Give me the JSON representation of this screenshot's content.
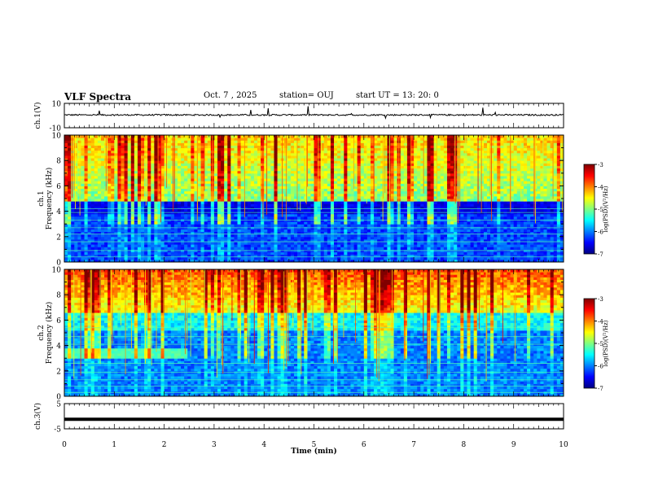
{
  "header": {
    "title": "VLF Spectra",
    "date": "Oct. 7 , 2025",
    "station": "station= OUJ",
    "start_ut": "start UT =  13: 20: 0"
  },
  "chart_data": {
    "type": "heatmap",
    "title": "VLF Spectra",
    "xlabel": "Time (min)",
    "xlim": [
      0,
      10
    ],
    "xticks": [
      "0",
      "1",
      "2",
      "3",
      "4",
      "5",
      "6",
      "7",
      "8",
      "9",
      "10"
    ],
    "panels": [
      {
        "id": "ch1-waveform",
        "ylabel": "ch.1(V)",
        "ylim": [
          -10,
          10
        ],
        "yticks": [
          "10",
          "-10"
        ],
        "kind": "waveform",
        "baseline": 0.5
      },
      {
        "id": "ch1-spectrogram",
        "ylabel": "ch.1\nFrequency (kHz)",
        "ylim": [
          0,
          10
        ],
        "yticks": [
          "0",
          "2",
          "4",
          "6",
          "8",
          "10"
        ],
        "kind": "spectrogram",
        "colorbar": {
          "label": "log(PSD)(V²/Hz)",
          "range": [
            -7,
            -3
          ],
          "ticks": [
            "-3",
            "-4",
            "-5",
            "-6",
            "-7"
          ]
        },
        "features": {
          "strong_band_above_khz": 4.8,
          "quiet_below_khz": 4.5,
          "narrowband_lines_khz": [
            0.4,
            0.9,
            1.6,
            2.2,
            2.7,
            3.3,
            3.9,
            4.2
          ]
        }
      },
      {
        "id": "ch2-spectrogram",
        "ylabel": "ch.2\nFrequency (kHz)",
        "ylim": [
          0,
          10
        ],
        "yticks": [
          "0",
          "2",
          "4",
          "6",
          "8",
          "10"
        ],
        "kind": "spectrogram",
        "colorbar": {
          "label": "log(PSD)(V²/Hz)",
          "range": [
            -7,
            -3
          ],
          "ticks": [
            "-3",
            "-4",
            "-5",
            "-6",
            "-7"
          ]
        },
        "features": {
          "strong_band_above_khz": 6.5,
          "transmitter_band_khz": 3.4,
          "transmitter_until_min": 2.5
        }
      },
      {
        "id": "ch3-waveform",
        "ylabel": "ch.3(V)",
        "ylim": [
          -5,
          5
        ],
        "yticks": [
          "5",
          "-5"
        ],
        "kind": "flat",
        "level": -1.2
      }
    ]
  },
  "colors": {
    "jet": [
      "#000080",
      "#0000ff",
      "#0080ff",
      "#00ffff",
      "#80ff80",
      "#ffff00",
      "#ff8000",
      "#ff0000",
      "#800000"
    ]
  }
}
